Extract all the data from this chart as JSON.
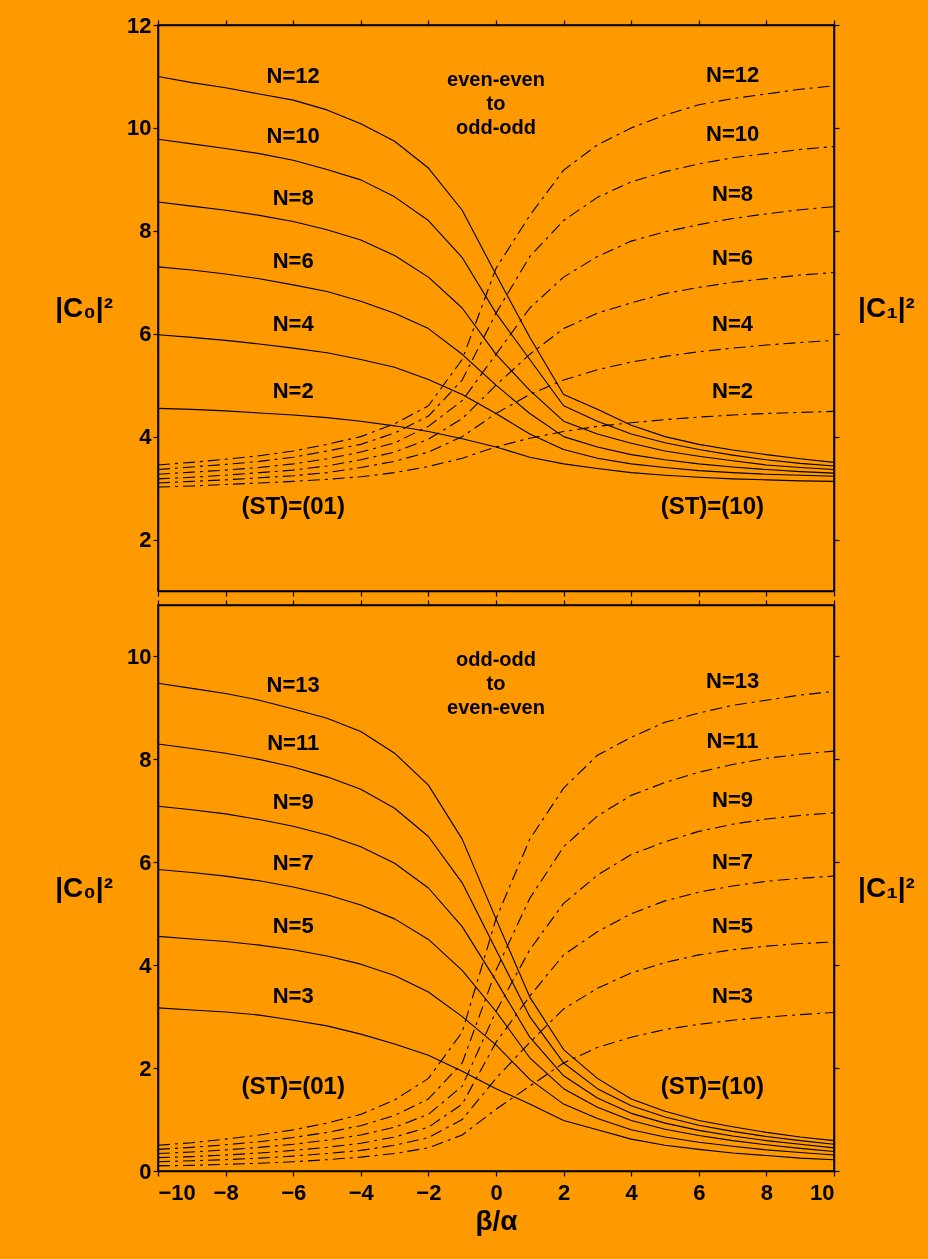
{
  "chart_data": [
    {
      "type": "line",
      "ylabel": "|C₀|²",
      "y2label": "|C₁|²",
      "x": [
        -10,
        -9,
        -8,
        -7,
        -6,
        -5,
        -4,
        -3,
        -2,
        -1,
        0,
        1,
        2,
        3,
        4,
        5,
        6,
        7,
        8,
        9,
        10
      ],
      "xlim": [
        -10,
        10
      ],
      "xticks": [
        -10,
        -8,
        -6,
        -4,
        -2,
        0,
        2,
        4,
        6,
        8,
        10
      ],
      "ylim": [
        1,
        12
      ],
      "yticks": [
        2,
        4,
        6,
        8,
        10,
        12
      ],
      "tick_labels": "y",
      "annotations": [
        "even-even\nto\nodd-odd",
        "(ST)=(01)",
        "(ST)=(10)"
      ],
      "series": [
        {
          "name": "N=12",
          "color": "#000000",
          "line_style": "solid",
          "values": [
            11.0,
            10.88,
            10.78,
            10.66,
            10.54,
            10.35,
            10.08,
            9.74,
            9.22,
            8.4,
            7.15,
            5.93,
            4.82,
            4.53,
            4.22,
            4.0,
            3.85,
            3.74,
            3.65,
            3.57,
            3.5
          ]
        },
        {
          "name": "N=10",
          "color": "#000000",
          "line_style": "solid",
          "values": [
            9.78,
            9.69,
            9.6,
            9.5,
            9.37,
            9.19,
            8.99,
            8.66,
            8.2,
            7.48,
            6.4,
            5.5,
            4.6,
            4.3,
            4.05,
            3.88,
            3.75,
            3.64,
            3.55,
            3.48,
            3.43
          ]
        },
        {
          "name": "N=8",
          "color": "#000000",
          "line_style": "solid",
          "values": [
            8.56,
            8.48,
            8.4,
            8.3,
            8.18,
            8.02,
            7.82,
            7.52,
            7.1,
            6.5,
            5.6,
            4.9,
            4.3,
            4.05,
            3.87,
            3.72,
            3.62,
            3.53,
            3.45,
            3.4,
            3.36
          ]
        },
        {
          "name": "N=6",
          "color": "#000000",
          "line_style": "solid",
          "values": [
            7.3,
            7.24,
            7.16,
            7.07,
            6.95,
            6.82,
            6.63,
            6.4,
            6.1,
            5.6,
            5.0,
            4.45,
            4.0,
            3.8,
            3.65,
            3.55,
            3.47,
            3.41,
            3.36,
            3.32,
            3.29
          ]
        },
        {
          "name": "N=4",
          "color": "#000000",
          "line_style": "solid",
          "values": [
            5.98,
            5.93,
            5.87,
            5.8,
            5.72,
            5.63,
            5.5,
            5.35,
            5.11,
            4.82,
            4.45,
            4.05,
            3.75,
            3.58,
            3.47,
            3.4,
            3.34,
            3.3,
            3.27,
            3.25,
            3.23
          ]
        },
        {
          "name": "N=2",
          "color": "#000000",
          "line_style": "solid",
          "values": [
            4.55,
            4.53,
            4.5,
            4.46,
            4.42,
            4.37,
            4.3,
            4.21,
            4.1,
            3.96,
            3.8,
            3.6,
            3.47,
            3.38,
            3.3,
            3.25,
            3.21,
            3.18,
            3.16,
            3.14,
            3.13
          ]
        },
        {
          "name": "N=12",
          "color": "#000000",
          "line_style": "dashed",
          "values": [
            3.45,
            3.5,
            3.56,
            3.63,
            3.72,
            3.85,
            4.0,
            4.25,
            4.6,
            5.5,
            7.27,
            8.3,
            9.18,
            9.67,
            10.0,
            10.25,
            10.45,
            10.57,
            10.66,
            10.75,
            10.82
          ]
        },
        {
          "name": "N=10",
          "color": "#000000",
          "line_style": "dashed",
          "values": [
            3.36,
            3.41,
            3.46,
            3.52,
            3.6,
            3.72,
            3.85,
            4.07,
            4.4,
            5.1,
            6.4,
            7.5,
            8.2,
            8.65,
            8.95,
            9.15,
            9.3,
            9.42,
            9.5,
            9.58,
            9.64
          ]
        },
        {
          "name": "N=8",
          "color": "#000000",
          "line_style": "dashed",
          "values": [
            3.27,
            3.31,
            3.35,
            3.4,
            3.47,
            3.57,
            3.7,
            3.88,
            4.2,
            4.7,
            5.6,
            6.5,
            7.1,
            7.5,
            7.8,
            7.98,
            8.12,
            8.24,
            8.33,
            8.41,
            8.47
          ]
        },
        {
          "name": "N=6",
          "color": "#000000",
          "line_style": "dashed",
          "values": [
            3.18,
            3.21,
            3.25,
            3.3,
            3.35,
            3.43,
            3.55,
            3.7,
            3.95,
            4.35,
            5.0,
            5.6,
            6.1,
            6.4,
            6.6,
            6.78,
            6.9,
            7.0,
            7.07,
            7.14,
            7.19
          ]
        },
        {
          "name": "N=4",
          "color": "#000000",
          "line_style": "dashed",
          "values": [
            3.1,
            3.13,
            3.16,
            3.2,
            3.24,
            3.3,
            3.4,
            3.52,
            3.7,
            4.0,
            4.45,
            4.82,
            5.1,
            5.3,
            5.45,
            5.56,
            5.65,
            5.72,
            5.78,
            5.83,
            5.87
          ]
        },
        {
          "name": "N=2",
          "color": "#000000",
          "line_style": "dashed",
          "values": [
            3.02,
            3.04,
            3.07,
            3.1,
            3.13,
            3.17,
            3.22,
            3.3,
            3.42,
            3.58,
            3.8,
            3.97,
            4.1,
            4.2,
            4.27,
            4.33,
            4.38,
            4.42,
            4.45,
            4.47,
            4.49
          ]
        }
      ]
    },
    {
      "type": "line",
      "xlabel": "β/α",
      "ylabel": "|C₀|²",
      "y2label": "|C₁|²",
      "x": [
        -10,
        -9,
        -8,
        -7,
        -6,
        -5,
        -4,
        -3,
        -2,
        -1,
        0,
        1,
        2,
        3,
        4,
        5,
        6,
        7,
        8,
        9,
        10
      ],
      "xlim": [
        -10,
        10
      ],
      "xticks": [
        -10,
        -8,
        -6,
        -4,
        -2,
        0,
        2,
        4,
        6,
        8,
        10
      ],
      "ylim": [
        0,
        11
      ],
      "yticks": [
        0,
        2,
        4,
        6,
        8,
        10
      ],
      "annotations": [
        "odd-odd\nto\neven-even",
        "(ST)=(01)",
        "(ST)=(10)"
      ],
      "series": [
        {
          "name": "N=13",
          "color": "#000000",
          "line_style": "solid",
          "values": [
            9.48,
            9.38,
            9.28,
            9.15,
            8.98,
            8.8,
            8.54,
            8.12,
            7.5,
            6.45,
            4.9,
            3.38,
            2.36,
            1.8,
            1.4,
            1.16,
            0.98,
            0.86,
            0.75,
            0.66,
            0.59
          ]
        },
        {
          "name": "N=11",
          "color": "#000000",
          "line_style": "solid",
          "values": [
            8.3,
            8.21,
            8.12,
            8.0,
            7.85,
            7.66,
            7.42,
            7.05,
            6.5,
            5.6,
            4.3,
            3.0,
            2.1,
            1.6,
            1.27,
            1.05,
            0.89,
            0.77,
            0.67,
            0.59,
            0.52
          ]
        },
        {
          "name": "N=9",
          "color": "#000000",
          "line_style": "solid",
          "values": [
            7.09,
            7.02,
            6.94,
            6.83,
            6.7,
            6.53,
            6.3,
            5.98,
            5.5,
            4.75,
            3.7,
            2.6,
            1.85,
            1.42,
            1.12,
            0.93,
            0.79,
            0.68,
            0.59,
            0.52,
            0.45
          ]
        },
        {
          "name": "N=7",
          "color": "#000000",
          "line_style": "solid",
          "values": [
            5.86,
            5.8,
            5.73,
            5.64,
            5.52,
            5.37,
            5.17,
            4.9,
            4.5,
            3.9,
            3.1,
            2.2,
            1.6,
            1.24,
            0.98,
            0.81,
            0.69,
            0.59,
            0.51,
            0.44,
            0.38
          ]
        },
        {
          "name": "N=5",
          "color": "#000000",
          "line_style": "solid",
          "values": [
            4.56,
            4.51,
            4.46,
            4.39,
            4.3,
            4.18,
            4.02,
            3.8,
            3.48,
            3.0,
            2.45,
            1.78,
            1.3,
            1.02,
            0.8,
            0.66,
            0.56,
            0.48,
            0.41,
            0.36,
            0.31
          ]
        },
        {
          "name": "N=3",
          "color": "#000000",
          "line_style": "solid",
          "values": [
            3.17,
            3.13,
            3.09,
            3.03,
            2.93,
            2.82,
            2.66,
            2.47,
            2.25,
            1.94,
            1.6,
            1.3,
            0.98,
            0.8,
            0.62,
            0.5,
            0.42,
            0.35,
            0.3,
            0.25,
            0.22
          ]
        },
        {
          "name": "N=13",
          "color": "#000000",
          "line_style": "dashed",
          "values": [
            0.5,
            0.55,
            0.62,
            0.7,
            0.8,
            0.93,
            1.1,
            1.38,
            1.8,
            2.7,
            4.9,
            6.45,
            7.44,
            8.08,
            8.43,
            8.72,
            8.9,
            9.05,
            9.15,
            9.25,
            9.32
          ]
        },
        {
          "name": "N=11",
          "color": "#000000",
          "line_style": "dashed",
          "values": [
            0.42,
            0.46,
            0.51,
            0.57,
            0.65,
            0.75,
            0.88,
            1.08,
            1.4,
            2.1,
            3.9,
            5.3,
            6.3,
            6.9,
            7.3,
            7.55,
            7.75,
            7.9,
            8.02,
            8.1,
            8.16
          ]
        },
        {
          "name": "N=9",
          "color": "#000000",
          "line_style": "dashed",
          "values": [
            0.34,
            0.37,
            0.41,
            0.46,
            0.52,
            0.6,
            0.7,
            0.85,
            1.1,
            1.65,
            3.1,
            4.3,
            5.2,
            5.75,
            6.15,
            6.4,
            6.6,
            6.74,
            6.84,
            6.91,
            6.96
          ]
        },
        {
          "name": "N=7",
          "color": "#000000",
          "line_style": "dashed",
          "values": [
            0.26,
            0.28,
            0.31,
            0.35,
            0.4,
            0.46,
            0.54,
            0.66,
            0.85,
            1.3,
            2.5,
            3.4,
            4.2,
            4.65,
            5.0,
            5.25,
            5.42,
            5.54,
            5.63,
            5.69,
            5.73
          ]
        },
        {
          "name": "N=5",
          "color": "#000000",
          "line_style": "dashed",
          "values": [
            0.18,
            0.2,
            0.22,
            0.25,
            0.29,
            0.34,
            0.4,
            0.5,
            0.65,
            1.0,
            1.8,
            2.5,
            3.15,
            3.55,
            3.85,
            4.05,
            4.2,
            4.3,
            4.37,
            4.42,
            4.45
          ]
        },
        {
          "name": "N=3",
          "color": "#000000",
          "line_style": "dashed",
          "values": [
            0.1,
            0.11,
            0.13,
            0.15,
            0.18,
            0.22,
            0.27,
            0.34,
            0.45,
            0.7,
            1.2,
            1.65,
            2.1,
            2.4,
            2.6,
            2.75,
            2.85,
            2.93,
            2.99,
            3.04,
            3.08
          ]
        }
      ]
    }
  ]
}
